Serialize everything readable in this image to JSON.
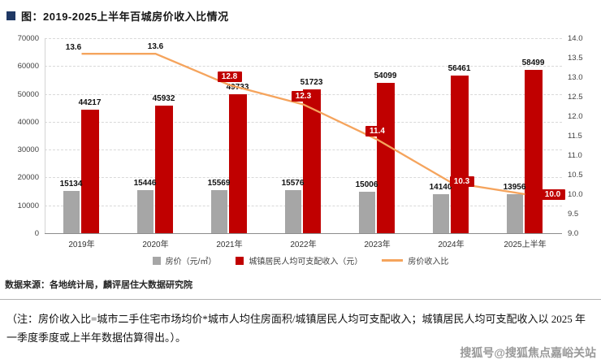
{
  "title": "图：2019-2025上半年百城房价收入比情况",
  "source": "数据来源：各地统计局，麟评居住大数据研究院",
  "note": "（注：房价收入比=城市二手住宅市场均价*城市人均住房面积/城镇居民人均可支配收入；城镇居民人均可支配收入以 2025 年一季度季度或上半年数据估算得出。）。",
  "watermark": "搜狐号@搜狐焦点嘉峪关站",
  "colors": {
    "title_square": "#1f3864",
    "bar_gray": "#a6a6a6",
    "bar_red": "#c00000",
    "line_orange": "#f5a45d",
    "line_label_bg": "#c00000"
  },
  "chart_data": {
    "type": "combo-bar-line",
    "title": "2019-2025上半年百城房价收入比情况",
    "categories": [
      "2019年",
      "2020年",
      "2021年",
      "2022年",
      "2023年",
      "2024年",
      "2025上半年"
    ],
    "series": [
      {
        "name": "房价（元/㎡）",
        "type": "bar",
        "axis": "left",
        "color": "#a6a6a6",
        "values": [
          15134,
          15446,
          15569,
          15576,
          15006,
          14140,
          13956
        ]
      },
      {
        "name": "城镇居民人均可支配收入（元）",
        "type": "bar",
        "axis": "left",
        "color": "#c00000",
        "values": [
          44217,
          45932,
          49733,
          51723,
          54099,
          56461,
          58499
        ]
      },
      {
        "name": "房价收入比",
        "type": "line",
        "axis": "right",
        "color": "#f5a45d",
        "values": [
          13.6,
          13.6,
          12.8,
          12.3,
          11.4,
          10.3,
          10.0
        ]
      }
    ],
    "left_axis": {
      "min": 0,
      "max": 70000,
      "step": 10000,
      "ticks": [
        "0",
        "10000",
        "20000",
        "30000",
        "40000",
        "50000",
        "60000",
        "70000"
      ]
    },
    "right_axis": {
      "min": 9.0,
      "max": 14.0,
      "step": 0.5,
      "ticks": [
        "9.0",
        "9.5",
        "10.0",
        "10.5",
        "11.0",
        "11.5",
        "12.0",
        "12.5",
        "13.0",
        "13.5",
        "14.0"
      ]
    },
    "grid": true,
    "legend_position": "bottom"
  }
}
